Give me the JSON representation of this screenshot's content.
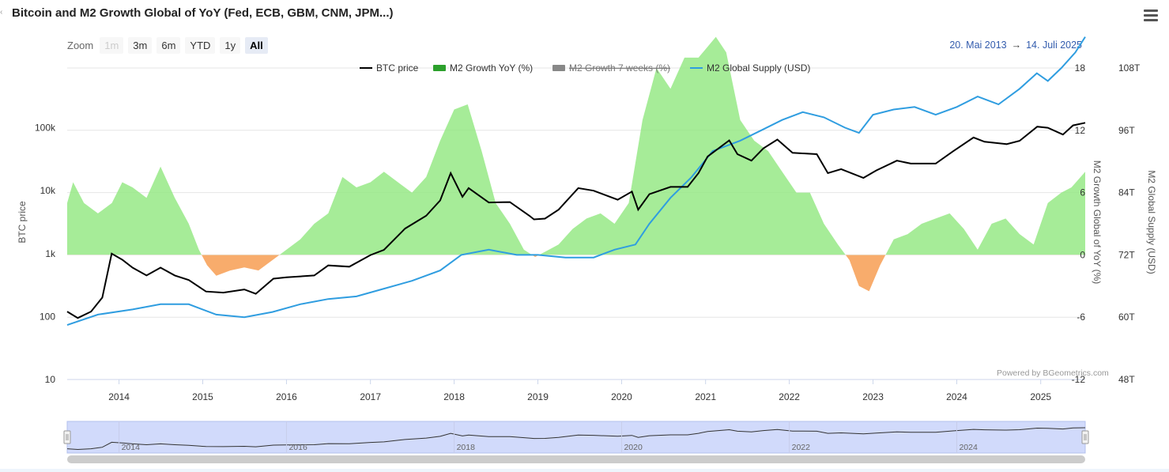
{
  "title": "Bitcoin and M2 Growth Global of YoY (Fed, ECB, GBM, CNM, JPM...)",
  "zoom": {
    "label": "Zoom",
    "buttons": [
      "1m",
      "3m",
      "6m",
      "YTD",
      "1y",
      "All"
    ],
    "disabled": "1m",
    "active": "All"
  },
  "range": {
    "from": "20. Mai 2013",
    "arrow": "→",
    "to": "14. Juli 2025"
  },
  "credit": "Powered by BGeometrics.com",
  "icons": {
    "menu": "hamburger-menu-icon"
  },
  "colors": {
    "btc": "#000000",
    "m2_positive": "#90e77e",
    "m2_negative": "#f7a35c",
    "m2_7w": "#808080",
    "m2_supply": "#2f9de0",
    "navigator": "#ccd6fb"
  },
  "chart_data": {
    "type": "line",
    "x_range": [
      "2013-05-20",
      "2025-07-14"
    ],
    "x_ticks": [
      "2014",
      "2015",
      "2016",
      "2017",
      "2018",
      "2019",
      "2020",
      "2021",
      "2022",
      "2023",
      "2024",
      "2025"
    ],
    "axes": {
      "btc": {
        "label": "BTC price",
        "scale": "log",
        "ticks": [
          "10",
          "100",
          "1k",
          "10k",
          "100k"
        ],
        "range": [
          10,
          1000000
        ]
      },
      "m2_growth": {
        "label": "M2 Growth Global of YoY (%)",
        "ticks": [
          "-12",
          "-6",
          "0",
          "6",
          "12",
          "18"
        ],
        "range": [
          -12,
          18
        ]
      },
      "m2_supply": {
        "label": "M2 Global Supply (USD)",
        "ticks": [
          "48T",
          "60T",
          "72T",
          "84T",
          "96T",
          "108T"
        ],
        "range": [
          48,
          108
        ]
      }
    },
    "legend": {
      "placement": "top-center",
      "items": [
        "BTC price",
        "M2 Growth YoY (%)",
        "M2 Growth 7 weeks (%)",
        "M2 Global Supply (USD)"
      ],
      "hidden": [
        "M2 Growth 7 weeks (%)"
      ]
    },
    "series": [
      {
        "name": "BTC price",
        "axis": "btc",
        "x": [
          "2013-05-20",
          "2013-07-05",
          "2013-09-01",
          "2013-10-20",
          "2013-11-30",
          "2014-01-15",
          "2014-03-01",
          "2014-05-01",
          "2014-07-01",
          "2014-09-01",
          "2014-11-01",
          "2015-01-15",
          "2015-04-01",
          "2015-07-01",
          "2015-08-20",
          "2015-11-05",
          "2016-01-01",
          "2016-05-01",
          "2016-07-01",
          "2016-10-01",
          "2017-01-01",
          "2017-03-01",
          "2017-06-01",
          "2017-09-01",
          "2017-11-01",
          "2017-12-17",
          "2018-02-06",
          "2018-03-05",
          "2018-06-01",
          "2018-09-01",
          "2018-11-25",
          "2018-12-15",
          "2019-02-01",
          "2019-04-01",
          "2019-06-26",
          "2019-09-01",
          "2019-12-15",
          "2020-02-15",
          "2020-03-13",
          "2020-05-01",
          "2020-08-01",
          "2020-10-15",
          "2020-12-01",
          "2021-01-10",
          "2021-04-14",
          "2021-05-20",
          "2021-07-20",
          "2021-09-10",
          "2021-11-10",
          "2022-01-15",
          "2022-05-01",
          "2022-06-18",
          "2022-08-15",
          "2022-11-20",
          "2023-01-15",
          "2023-04-15",
          "2023-06-15",
          "2023-10-01",
          "2023-12-15",
          "2024-03-14",
          "2024-05-01",
          "2024-08-05",
          "2024-10-01",
          "2024-12-17",
          "2025-02-01",
          "2025-04-08",
          "2025-05-22",
          "2025-07-14"
        ],
        "values": [
          120,
          95,
          120,
          200,
          1000,
          800,
          600,
          450,
          600,
          450,
          380,
          250,
          240,
          270,
          230,
          400,
          420,
          450,
          650,
          620,
          950,
          1150,
          2500,
          4000,
          7000,
          19000,
          8000,
          11000,
          6500,
          6600,
          4000,
          3500,
          3600,
          5000,
          11000,
          10000,
          7200,
          9700,
          5000,
          8800,
          11500,
          11500,
          19000,
          35000,
          63000,
          38000,
          30000,
          47000,
          65000,
          40000,
          38000,
          19000,
          22000,
          16000,
          21000,
          30000,
          27000,
          27000,
          42000,
          70000,
          60000,
          55000,
          62000,
          104000,
          100000,
          78000,
          109000,
          120000
        ]
      },
      {
        "name": "M2 Growth YoY (%)",
        "axis": "m2_growth",
        "x": [
          "2013-05-20",
          "2013-06-15",
          "2013-08-01",
          "2013-10-01",
          "2013-12-01",
          "2014-01-15",
          "2014-03-01",
          "2014-05-01",
          "2014-07-01",
          "2014-09-01",
          "2014-11-01",
          "2014-12-15",
          "2015-01-20",
          "2015-03-01",
          "2015-05-01",
          "2015-07-01",
          "2015-09-01",
          "2015-11-01",
          "2016-01-01",
          "2016-03-01",
          "2016-05-01",
          "2016-07-01",
          "2016-09-01",
          "2016-11-01",
          "2017-01-01",
          "2017-03-01",
          "2017-05-01",
          "2017-07-01",
          "2017-09-01",
          "2017-11-01",
          "2018-01-01",
          "2018-03-01",
          "2018-05-01",
          "2018-07-01",
          "2018-09-01",
          "2018-11-01",
          "2018-12-20",
          "2019-02-01",
          "2019-04-01",
          "2019-06-01",
          "2019-08-01",
          "2019-10-01",
          "2019-12-01",
          "2020-02-01",
          "2020-04-01",
          "2020-06-01",
          "2020-08-01",
          "2020-10-01",
          "2020-12-01",
          "2021-02-15",
          "2021-04-01",
          "2021-06-01",
          "2021-08-01",
          "2021-10-01",
          "2021-12-01",
          "2022-02-01",
          "2022-04-01",
          "2022-06-01",
          "2022-08-01",
          "2022-09-20",
          "2022-11-01",
          "2022-12-15",
          "2023-02-01",
          "2023-04-01",
          "2023-06-01",
          "2023-08-01",
          "2023-10-01",
          "2023-12-01",
          "2024-02-01",
          "2024-04-01",
          "2024-06-01",
          "2024-08-01",
          "2024-10-01",
          "2024-12-01",
          "2025-02-01",
          "2025-04-01",
          "2025-05-15",
          "2025-07-14"
        ],
        "values": [
          5,
          7,
          5,
          4,
          5,
          7,
          6.5,
          5.5,
          8.5,
          5.5,
          3,
          0.5,
          -1,
          -2,
          -1.5,
          -1.2,
          -1.5,
          -0.5,
          0.5,
          1.5,
          3,
          4,
          7.5,
          6.5,
          7,
          8,
          7,
          6,
          7.5,
          11,
          14,
          14.5,
          10,
          5,
          3,
          0.5,
          -0.2,
          0.3,
          1,
          2.5,
          3.5,
          4,
          3,
          5,
          13,
          18,
          16,
          19,
          19,
          21,
          19.5,
          13,
          11,
          10,
          8,
          6,
          6,
          3,
          1,
          -0.5,
          -3,
          -3.5,
          -1,
          1.5,
          2,
          3,
          3.5,
          4,
          2.5,
          0.5,
          3,
          3.5,
          2,
          1,
          5,
          6,
          6.5,
          8
        ]
      },
      {
        "name": "M2 Global Supply (USD)",
        "axis": "m2_supply",
        "x": [
          "2013-05-20",
          "2013-10-01",
          "2014-03-01",
          "2014-07-01",
          "2014-11-01",
          "2015-03-01",
          "2015-07-01",
          "2015-11-01",
          "2016-03-01",
          "2016-07-01",
          "2016-11-01",
          "2017-03-01",
          "2017-07-01",
          "2017-11-01",
          "2018-02-01",
          "2018-06-01",
          "2018-10-01",
          "2019-01-01",
          "2019-05-01",
          "2019-09-01",
          "2019-12-01",
          "2020-03-01",
          "2020-05-01",
          "2020-08-01",
          "2020-11-01",
          "2021-02-01",
          "2021-06-01",
          "2021-09-01",
          "2021-12-01",
          "2022-03-01",
          "2022-06-01",
          "2022-09-01",
          "2022-11-01",
          "2023-01-01",
          "2023-04-01",
          "2023-07-01",
          "2023-10-01",
          "2024-01-01",
          "2024-04-01",
          "2024-07-01",
          "2024-10-01",
          "2024-12-15",
          "2025-02-01",
          "2025-04-01",
          "2025-06-01",
          "2025-07-14"
        ],
        "values": [
          58.5,
          60.5,
          61.5,
          62.5,
          62.5,
          60.5,
          60,
          61,
          62.5,
          63.5,
          64,
          65.5,
          67,
          69,
          72,
          73,
          72,
          72,
          71.5,
          71.5,
          73,
          74,
          78,
          83,
          87,
          92,
          94,
          96,
          98,
          99.5,
          98.5,
          96.5,
          95.5,
          99,
          100,
          100.5,
          99,
          100.5,
          102.5,
          101,
          104,
          107,
          105.5,
          108,
          111,
          114
        ]
      }
    ],
    "navigator_ticks": [
      "2014",
      "2016",
      "2018",
      "2020",
      "2022",
      "2024"
    ]
  }
}
